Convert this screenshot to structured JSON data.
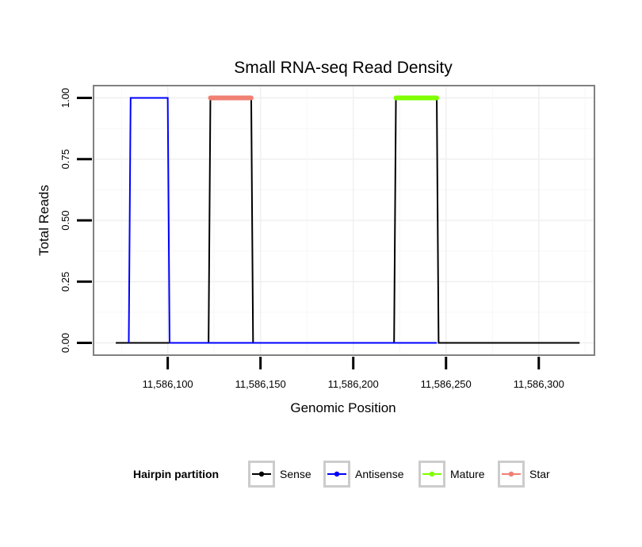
{
  "chart_data": {
    "type": "line",
    "title": "Small RNA-seq Read Density",
    "xlabel": "Genomic Position",
    "ylabel": "Total Reads",
    "xlim": [
      11586060,
      11586330
    ],
    "ylim": [
      -0.05,
      1.05
    ],
    "x_ticks": [
      11586100,
      11586150,
      11586200,
      11586250,
      11586300
    ],
    "x_tick_labels": [
      "11,586,100",
      "11,586,150",
      "11,586,200",
      "11,586,250",
      "11,586,300"
    ],
    "y_ticks": [
      0,
      0.25,
      0.5,
      0.75,
      1.0
    ],
    "y_tick_labels": [
      "0.00",
      "0.25",
      "0.50",
      "0.75",
      "1.00"
    ],
    "grid": true,
    "legend_title": "Hairpin partition",
    "legend_position": "bottom",
    "series": [
      {
        "name": "Sense",
        "color": "#000000",
        "x": [
          11586072,
          11586122,
          11586123,
          11586133,
          11586145,
          11586146,
          11586222,
          11586223,
          11586234,
          11586245,
          11586246,
          11586322
        ],
        "values": [
          0,
          0,
          1,
          1,
          1,
          0,
          0,
          1,
          1,
          1,
          0,
          0
        ]
      },
      {
        "name": "Antisense",
        "color": "#0000ff",
        "x": [
          11586079,
          11586080,
          11586090,
          11586100,
          11586101,
          11586123,
          11586145,
          11586223,
          11586245
        ],
        "values": [
          0,
          1,
          1,
          1,
          0,
          0,
          0,
          0,
          0
        ]
      },
      {
        "name": "Mature",
        "color": "#7fff00",
        "x": [
          11586223,
          11586245
        ],
        "values": [
          1,
          1
        ]
      },
      {
        "name": "Star",
        "color": "#f08073",
        "x": [
          11586123,
          11586145
        ],
        "values": [
          1,
          1
        ]
      }
    ]
  }
}
